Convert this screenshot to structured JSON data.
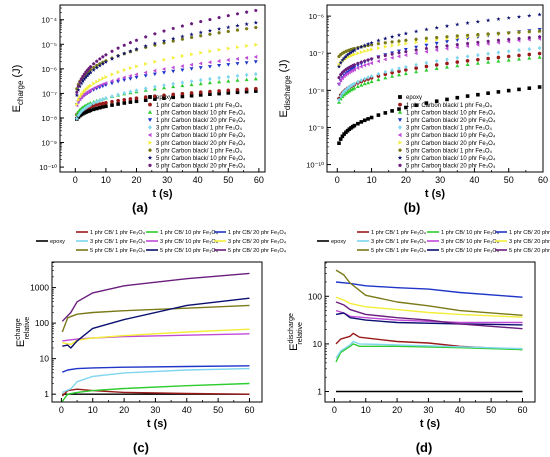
{
  "figure": {
    "panels": [
      "(a)",
      "(b)",
      "(c)",
      "(d)"
    ]
  },
  "colors": {
    "epoxy": "#000000",
    "cb1_fe1": "#9a1a1a",
    "cb1_fe10": "#2ecc2e",
    "cb1_fe20": "#1f36c8",
    "cb3_fe1": "#7fd6ee",
    "cb3_fe10": "#c04ad8",
    "cb3_fe20": "#f2ee3a",
    "cb5_fe1": "#7a7a18",
    "cb5_fe10": "#0c1070",
    "cb5_fe20": "#6a1d7c"
  },
  "chart_data": [
    {
      "panel": "(a)",
      "type": "scatter",
      "xlabel": "t (s)",
      "ylabel": "E_charge (J)",
      "ylabel_main": "E",
      "ylabel_sub": "charge",
      "ylabel_unit": " (J)",
      "xlim": [
        -5,
        62
      ],
      "ylim_log10": [
        -10.2,
        -3.4
      ],
      "yscale": "log",
      "xticks": [
        "0",
        "10",
        "20",
        "30",
        "40",
        "50",
        "60"
      ],
      "yticks": [
        "10⁻¹⁰",
        "10⁻⁹",
        "10⁻⁸",
        "10⁻⁷",
        "10⁻⁶",
        "10⁻⁵",
        "10⁻⁴"
      ],
      "legend_position": "bottom-right",
      "series": [
        {
          "key": "epoxy",
          "name": "epoxy",
          "marker": "square",
          "start": -8.4,
          "end": -6.9
        },
        {
          "key": "cb1_fe1",
          "name": "1 phr Carbon black/ 1 phr Fe₃O₄",
          "marker": "circle",
          "start": -8.2,
          "end": -6.8
        },
        {
          "key": "cb1_fe10",
          "name": "1 phr Carbon black/ 10 phr Fe₃O₄",
          "marker": "triangle-up",
          "start": -8.3,
          "end": -6.4
        },
        {
          "key": "cb1_fe20",
          "name": "1 phr Carbon black/ 20 phr Fe₃O₄",
          "marker": "triangle-down",
          "start": -8.0,
          "end": -5.7
        },
        {
          "key": "cb3_fe1",
          "name": "3 phr Carbon black/ 1 phr Fe₃O₄",
          "marker": "diamond",
          "start": -8.6,
          "end": -6.2
        },
        {
          "key": "cb3_fe10",
          "name": "3 phr Carbon black/ 10 phr Fe₃O₄",
          "marker": "triangle-left",
          "start": -8.1,
          "end": -5.5
        },
        {
          "key": "cb3_fe20",
          "name": "3 phr Carbon black/ 20 phr Fe₃O₄",
          "marker": "triangle-right",
          "start": -8.2,
          "end": -5.0
        },
        {
          "key": "cb5_fe1",
          "name": "5 phr Carbon black/ 1 phr Fe₃O₄",
          "marker": "hexagon",
          "start": -7.6,
          "end": -4.3
        },
        {
          "key": "cb5_fe10",
          "name": "5 phr Carbon black/ 10 phr Fe₃O₄",
          "marker": "star",
          "start": -8.0,
          "end": -4.1
        },
        {
          "key": "cb5_fe20",
          "name": "5 phr Carbon black/ 20 phr Fe₃O₄",
          "marker": "pentagon",
          "start": -8.0,
          "end": -3.6
        }
      ]
    },
    {
      "panel": "(b)",
      "type": "scatter",
      "xlabel": "t (s)",
      "ylabel": "E_discharge (J)",
      "ylabel_main": "E",
      "ylabel_sub": "discharge",
      "ylabel_unit": " (J)",
      "xlim": [
        -3,
        60
      ],
      "ylim_log10": [
        -10.2,
        -5.7
      ],
      "yscale": "log",
      "xticks": [
        "0",
        "10",
        "20",
        "30",
        "40",
        "50",
        "60"
      ],
      "yticks": [
        "10⁻¹⁰",
        "10⁻⁹",
        "10⁻⁸",
        "10⁻⁷",
        "10⁻⁶"
      ],
      "legend_position": "bottom-right",
      "series": [
        {
          "key": "epoxy",
          "name": "epoxy",
          "marker": "square",
          "start": -9.9,
          "end": -7.9
        },
        {
          "key": "cb1_fe1",
          "name": "1 phr Carbon black/ 1 phr Fe₃O₄",
          "marker": "circle",
          "start": -8.6,
          "end": -7.0
        },
        {
          "key": "cb1_fe10",
          "name": "1 phr Carbon black/ 10 phr Fe₃O₄",
          "marker": "triangle-up",
          "start": -8.7,
          "end": -7.1
        },
        {
          "key": "cb1_fe20",
          "name": "1 phr Carbon black/ 20 phr Fe₃O₄",
          "marker": "triangle-down",
          "start": -8.3,
          "end": -6.35
        },
        {
          "key": "cb3_fe1",
          "name": "3 phr Carbon black/ 1 phr Fe₃O₄",
          "marker": "diamond",
          "start": -8.7,
          "end": -6.85
        },
        {
          "key": "cb3_fe10",
          "name": "3 phr Carbon black/ 10 phr Fe₃O₄",
          "marker": "triangle-left",
          "start": -8.2,
          "end": -6.6
        },
        {
          "key": "cb3_fe20",
          "name": "3 phr Carbon black/ 20 phr Fe₃O₄",
          "marker": "triangle-right",
          "start": -7.6,
          "end": -6.4
        },
        {
          "key": "cb5_fe1",
          "name": "5 phr Carbon black/ 1 phr Fe₃O₄",
          "marker": "hexagon",
          "start": -7.3,
          "end": -6.4
        },
        {
          "key": "cb5_fe10",
          "name": "5 phr Carbon black/ 10 phr Fe₃O₄",
          "marker": "star",
          "start": -7.8,
          "end": -5.95
        },
        {
          "key": "cb5_fe20",
          "name": "5 phr Carbon black/ 20 phr Fe₃O₄",
          "marker": "pentagon",
          "start": -8.0,
          "end": -6.55
        }
      ]
    },
    {
      "panel": "(c)",
      "type": "line",
      "xlabel": "t (s)",
      "ylabel": "E_relative^charge",
      "ylabel_main": "E",
      "ylabel_top": "charge",
      "ylabel_bottom": "relative",
      "xlim": [
        -3,
        64
      ],
      "ylim_log10": [
        -0.22,
        3.72
      ],
      "yscale": "log",
      "xticks": [
        "0",
        "10",
        "20",
        "30",
        "40",
        "50",
        "60"
      ],
      "yticks": [
        "1",
        "10",
        "100",
        "1000"
      ],
      "legend_position": "top",
      "series": [
        {
          "key": "epoxy",
          "name": "epoxy",
          "pts": [
            [
              0.3,
              0
            ],
            [
              60,
              0
            ]
          ]
        },
        {
          "key": "cb1_fe1",
          "name": "1 phr CB/ 1 phr Fe₃O₄",
          "pts": [
            [
              0.3,
              -0.05
            ],
            [
              2,
              0.1
            ],
            [
              5,
              0.14
            ],
            [
              10,
              0.1
            ],
            [
              20,
              0.05
            ],
            [
              40,
              0.02
            ],
            [
              60,
              0.0
            ]
          ]
        },
        {
          "key": "cb1_fe10",
          "name": "1 phr CB/ 10 phr Fe₃O₄",
          "pts": [
            [
              0.3,
              -0.2
            ],
            [
              2,
              0.0
            ],
            [
              5,
              0.05
            ],
            [
              10,
              0.1
            ],
            [
              20,
              0.16
            ],
            [
              40,
              0.24
            ],
            [
              60,
              0.3
            ]
          ]
        },
        {
          "key": "cb1_fe20",
          "name": "1 phr CB/ 20 phr Fe₃O₄",
          "pts": [
            [
              0.3,
              0.62
            ],
            [
              2,
              0.68
            ],
            [
              5,
              0.72
            ],
            [
              10,
              0.74
            ],
            [
              20,
              0.76
            ],
            [
              40,
              0.78
            ],
            [
              60,
              0.8
            ]
          ]
        },
        {
          "key": "cb3_fe1",
          "name": "3 phr CB/ 1 phr Fe₃O₄",
          "pts": [
            [
              0.3,
              0.05
            ],
            [
              3,
              0.15
            ],
            [
              5,
              0.35
            ],
            [
              10,
              0.5
            ],
            [
              20,
              0.6
            ],
            [
              40,
              0.68
            ],
            [
              60,
              0.72
            ]
          ]
        },
        {
          "key": "cb3_fe10",
          "name": "3 phr CB/ 10 phr Fe₃O₄",
          "pts": [
            [
              0.3,
              1.5
            ],
            [
              2,
              1.52
            ],
            [
              5,
              1.55
            ],
            [
              10,
              1.58
            ],
            [
              20,
              1.62
            ],
            [
              40,
              1.66
            ],
            [
              60,
              1.7
            ]
          ]
        },
        {
          "key": "cb3_fe20",
          "name": "3 phr CB/ 20 phr Fe₃O₄",
          "pts": [
            [
              0.3,
              1.45
            ],
            [
              3,
              1.4
            ],
            [
              5,
              1.52
            ],
            [
              10,
              1.58
            ],
            [
              20,
              1.65
            ],
            [
              40,
              1.75
            ],
            [
              60,
              1.83
            ]
          ]
        },
        {
          "key": "cb5_fe1",
          "name": "5 phr CB/ 1 phr Fe₃O₄",
          "pts": [
            [
              0.3,
              1.75
            ],
            [
              2,
              2.15
            ],
            [
              5,
              2.25
            ],
            [
              10,
              2.3
            ],
            [
              20,
              2.35
            ],
            [
              40,
              2.42
            ],
            [
              60,
              2.5
            ]
          ]
        },
        {
          "key": "cb5_fe10",
          "name": "5 phr CB/ 10 phr Fe₃O₄",
          "pts": [
            [
              0.3,
              1.35
            ],
            [
              2,
              1.38
            ],
            [
              3,
              1.3
            ],
            [
              5,
              1.5
            ],
            [
              10,
              1.85
            ],
            [
              20,
              2.1
            ],
            [
              40,
              2.5
            ],
            [
              60,
              2.7
            ]
          ]
        },
        {
          "key": "cb5_fe20",
          "name": "5 phr CB/ 20 phr Fe₃O₄",
          "pts": [
            [
              0.3,
              2.05
            ],
            [
              3,
              2.3
            ],
            [
              5,
              2.6
            ],
            [
              10,
              2.85
            ],
            [
              20,
              3.05
            ],
            [
              40,
              3.25
            ],
            [
              60,
              3.4
            ]
          ]
        }
      ]
    },
    {
      "panel": "(d)",
      "type": "line",
      "xlabel": "t (s)",
      "ylabel": "E_relative^discharge",
      "ylabel_main": "E",
      "ylabel_top": "discharge",
      "ylabel_bottom": "relative",
      "xlim": [
        -3,
        64
      ],
      "ylim_log10": [
        -0.22,
        2.72
      ],
      "yscale": "log",
      "xticks": [
        "0",
        "10",
        "20",
        "30",
        "40",
        "50",
        "60"
      ],
      "yticks": [
        "1",
        "10",
        "100"
      ],
      "legend_position": "top",
      "series": [
        {
          "key": "epoxy",
          "name": "epoxy",
          "pts": [
            [
              0.5,
              0
            ],
            [
              60,
              0
            ]
          ]
        },
        {
          "key": "cb1_fe1",
          "name": "1 phr CB/ 1 phr Fe₃O₄",
          "pts": [
            [
              0.5,
              1.0
            ],
            [
              2,
              1.1
            ],
            [
              5,
              1.16
            ],
            [
              6,
              1.22
            ],
            [
              8,
              1.14
            ],
            [
              20,
              1.05
            ],
            [
              30,
              1.02
            ],
            [
              40,
              0.95
            ],
            [
              60,
              0.88
            ]
          ]
        },
        {
          "key": "cb1_fe10",
          "name": "1 phr CB/ 10 phr Fe₃O₄",
          "pts": [
            [
              0.5,
              0.62
            ],
            [
              2,
              0.82
            ],
            [
              5,
              0.95
            ],
            [
              6,
              1.0
            ],
            [
              8,
              0.95
            ],
            [
              20,
              0.95
            ],
            [
              40,
              0.92
            ],
            [
              60,
              0.88
            ]
          ]
        },
        {
          "key": "cb1_fe20",
          "name": "1 phr CB/ 20 phr Fe₃O₄",
          "pts": [
            [
              0.5,
              2.3
            ],
            [
              5,
              2.27
            ],
            [
              10,
              2.22
            ],
            [
              20,
              2.18
            ],
            [
              30,
              2.15
            ],
            [
              40,
              2.08
            ],
            [
              60,
              1.98
            ]
          ]
        },
        {
          "key": "cb3_fe1",
          "name": "3 phr CB/ 1 phr Fe₃O₄",
          "pts": [
            [
              0.5,
              0.7
            ],
            [
              2,
              0.85
            ],
            [
              5,
              0.98
            ],
            [
              6,
              1.05
            ],
            [
              8,
              1.0
            ],
            [
              20,
              0.98
            ],
            [
              40,
              0.94
            ],
            [
              60,
              0.9
            ]
          ]
        },
        {
          "key": "cb3_fe10",
          "name": "3 phr CB/ 10 phr Fe₃O₄",
          "pts": [
            [
              0.5,
              1.7
            ],
            [
              3,
              1.65
            ],
            [
              5,
              1.58
            ],
            [
              10,
              1.55
            ],
            [
              20,
              1.5
            ],
            [
              40,
              1.45
            ],
            [
              60,
              1.45
            ]
          ]
        },
        {
          "key": "cb3_fe20",
          "name": "3 phr CB/ 20 phr Fe₃O₄",
          "pts": [
            [
              0.5,
              1.98
            ],
            [
              3,
              1.92
            ],
            [
              5,
              1.85
            ],
            [
              10,
              1.78
            ],
            [
              20,
              1.72
            ],
            [
              30,
              1.66
            ],
            [
              40,
              1.62
            ],
            [
              60,
              1.56
            ]
          ]
        },
        {
          "key": "cb5_fe1",
          "name": "5 phr CB/ 1 phr Fe₃O₄",
          "pts": [
            [
              0.5,
              2.55
            ],
            [
              3,
              2.45
            ],
            [
              5,
              2.28
            ],
            [
              10,
              2.02
            ],
            [
              20,
              1.88
            ],
            [
              30,
              1.8
            ],
            [
              40,
              1.7
            ],
            [
              60,
              1.6
            ]
          ]
        },
        {
          "key": "cb5_fe10",
          "name": "5 phr CB/ 10 phr Fe₃O₄",
          "pts": [
            [
              0.5,
              1.62
            ],
            [
              3,
              1.65
            ],
            [
              5,
              1.55
            ],
            [
              10,
              1.5
            ],
            [
              20,
              1.45
            ],
            [
              40,
              1.42
            ],
            [
              60,
              1.4
            ]
          ]
        },
        {
          "key": "cb5_fe20",
          "name": "5 phr CB/ 20 phr Fe₃O₄",
          "pts": [
            [
              0.5,
              1.88
            ],
            [
              3,
              1.82
            ],
            [
              5,
              1.72
            ],
            [
              10,
              1.62
            ],
            [
              20,
              1.55
            ],
            [
              30,
              1.5
            ],
            [
              40,
              1.42
            ],
            [
              60,
              1.32
            ]
          ]
        }
      ]
    }
  ]
}
